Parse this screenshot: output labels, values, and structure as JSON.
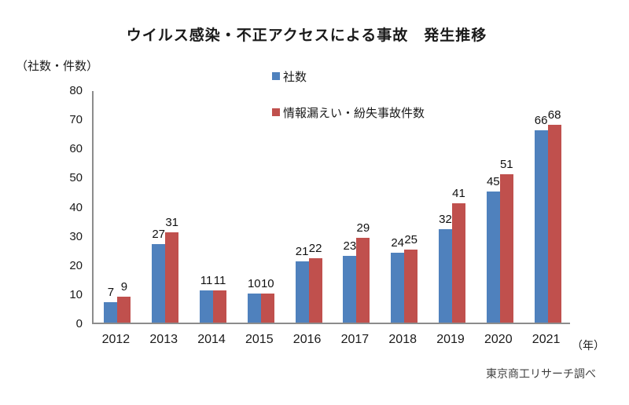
{
  "title": "ウイルス感染・不正アクセスによる事故　発生推移",
  "y_axis_unit": "（社数・件数）",
  "x_axis_unit": "（年）",
  "source_note": "東京商工リサーチ調べ",
  "colors": {
    "series_blue": "#4F81BD",
    "series_red": "#C0504D",
    "axis_line": "#8C8C8C",
    "text": "#1A1A1A"
  },
  "chart_data": {
    "type": "bar",
    "title": "ウイルス感染・不正アクセスによる事故　発生推移",
    "categories": [
      "2012",
      "2013",
      "2014",
      "2015",
      "2016",
      "2017",
      "2018",
      "2019",
      "2020",
      "2021"
    ],
    "series": [
      {
        "id": "companies",
        "name": "社数",
        "color": "#4F81BD",
        "values": [
          7,
          27,
          11,
          10,
          21,
          23,
          24,
          32,
          45,
          66
        ]
      },
      {
        "id": "incidents",
        "name": "情報漏えい・紛失事故件数",
        "color": "#C0504D",
        "values": [
          9,
          31,
          11,
          10,
          22,
          29,
          25,
          41,
          51,
          68
        ]
      }
    ],
    "ylim": [
      0,
      80
    ],
    "yticks": [
      0,
      10,
      20,
      30,
      40,
      50,
      60,
      70,
      80
    ],
    "ylabel": "（社数・件数）",
    "xlabel": "（年）",
    "grid": false,
    "data_labels": true,
    "legend_position": "top-center"
  }
}
